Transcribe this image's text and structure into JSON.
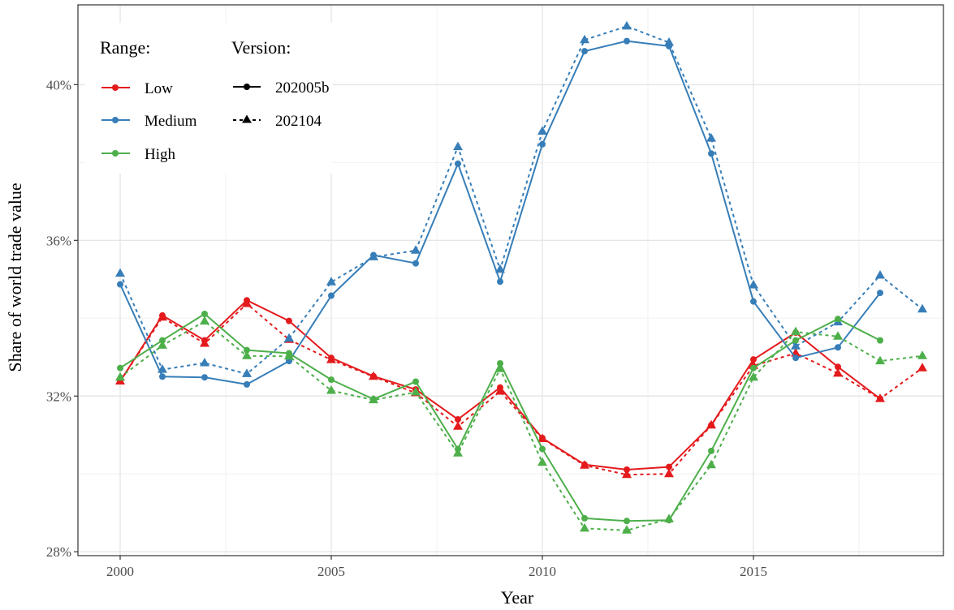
{
  "chart_data": {
    "type": "line",
    "title": "",
    "xlabel": "Year",
    "ylabel": "Share of world trade value",
    "xlim": [
      1999.0,
      2019.5
    ],
    "ylim": [
      0.279,
      0.4205
    ],
    "x_ticks": [
      2000,
      2005,
      2010,
      2015
    ],
    "x_tick_labels": [
      "2000",
      "2005",
      "2010",
      "2015"
    ],
    "y_ticks": [
      0.28,
      0.32,
      0.36,
      0.4
    ],
    "y_tick_labels": [
      "28%",
      "32%",
      "36%",
      "40%"
    ],
    "grid": true,
    "legend_placement": "top-left",
    "legend": {
      "range_title": "Range:",
      "version_title": "Version:",
      "range_entries": [
        "Low",
        "Medium",
        "High"
      ],
      "version_entries": [
        "202005b",
        "202104"
      ]
    },
    "colors": {
      "Low": "#e41a1c",
      "Medium": "#377eb8",
      "High": "#4daf4a"
    },
    "series": [
      {
        "name": "Low",
        "range": "Low",
        "version": "202005b",
        "line": "solid",
        "marker": "circle",
        "x": [
          2000,
          2001,
          2002,
          2003,
          2004,
          2005,
          2006,
          2007,
          2008,
          2009,
          2010,
          2011,
          2012,
          2013,
          2014,
          2015,
          2016,
          2017,
          2018
        ],
        "values": [
          0.3238,
          0.3407,
          0.3343,
          0.3446,
          0.3393,
          0.3298,
          0.3251,
          0.3217,
          0.314,
          0.3222,
          0.3092,
          0.3024,
          0.3011,
          0.3018,
          0.3125,
          0.3294,
          0.3363,
          0.3275,
          0.3193
        ]
      },
      {
        "name": "Low",
        "range": "Low",
        "version": "202104",
        "line": "dashed",
        "marker": "triangle",
        "x": [
          2000,
          2001,
          2002,
          2003,
          2004,
          2005,
          2006,
          2007,
          2008,
          2009,
          2010,
          2011,
          2012,
          2013,
          2014,
          2015,
          2016,
          2017,
          2018,
          2019
        ],
        "values": [
          0.3238,
          0.3402,
          0.3335,
          0.3437,
          0.3345,
          0.3293,
          0.325,
          0.3208,
          0.3122,
          0.3212,
          0.309,
          0.3022,
          0.2998,
          0.3,
          0.3125,
          0.3278,
          0.331,
          0.3258,
          0.3193,
          0.3272
        ]
      },
      {
        "name": "Medium",
        "range": "Medium",
        "version": "202005b",
        "line": "solid",
        "marker": "circle",
        "x": [
          2000,
          2001,
          2002,
          2003,
          2004,
          2005,
          2006,
          2007,
          2008,
          2009,
          2010,
          2011,
          2012,
          2013,
          2014,
          2015,
          2016,
          2017,
          2018
        ],
        "values": [
          0.3487,
          0.325,
          0.3248,
          0.323,
          0.329,
          0.3458,
          0.3562,
          0.3541,
          0.3797,
          0.3494,
          0.3847,
          0.4086,
          0.4112,
          0.4099,
          0.3823,
          0.3443,
          0.3298,
          0.3325,
          0.3465
        ]
      },
      {
        "name": "Medium",
        "range": "Medium",
        "version": "202104",
        "line": "dashed",
        "marker": "triangle",
        "x": [
          2000,
          2001,
          2002,
          2003,
          2004,
          2005,
          2006,
          2007,
          2008,
          2009,
          2010,
          2011,
          2012,
          2013,
          2014,
          2015,
          2016,
          2017,
          2018,
          2019
        ],
        "values": [
          0.3515,
          0.3268,
          0.3285,
          0.3257,
          0.3348,
          0.3493,
          0.3557,
          0.3574,
          0.384,
          0.3525,
          0.388,
          0.4115,
          0.415,
          0.4108,
          0.3862,
          0.3485,
          0.3328,
          0.339,
          0.351,
          0.3423
        ]
      },
      {
        "name": "High",
        "range": "High",
        "version": "202005b",
        "line": "solid",
        "marker": "circle",
        "x": [
          2000,
          2001,
          2002,
          2003,
          2004,
          2005,
          2006,
          2007,
          2008,
          2009,
          2010,
          2011,
          2012,
          2013,
          2014,
          2015,
          2016,
          2017,
          2018
        ],
        "values": [
          0.3272,
          0.3343,
          0.3411,
          0.3318,
          0.331,
          0.3242,
          0.3192,
          0.3237,
          0.3064,
          0.3284,
          0.3064,
          0.2886,
          0.2879,
          0.2881,
          0.3059,
          0.3272,
          0.3343,
          0.3398,
          0.3343
        ]
      },
      {
        "name": "High",
        "range": "High",
        "version": "202104",
        "line": "dashed",
        "marker": "triangle",
        "x": [
          2000,
          2001,
          2002,
          2003,
          2004,
          2005,
          2006,
          2007,
          2008,
          2009,
          2010,
          2011,
          2012,
          2013,
          2014,
          2015,
          2016,
          2017,
          2018,
          2019
        ],
        "values": [
          0.3248,
          0.333,
          0.3392,
          0.3303,
          0.3302,
          0.3214,
          0.319,
          0.321,
          0.3053,
          0.327,
          0.3029,
          0.286,
          0.2855,
          0.2884,
          0.3023,
          0.3248,
          0.3365,
          0.3353,
          0.329,
          0.3303
        ]
      }
    ]
  }
}
